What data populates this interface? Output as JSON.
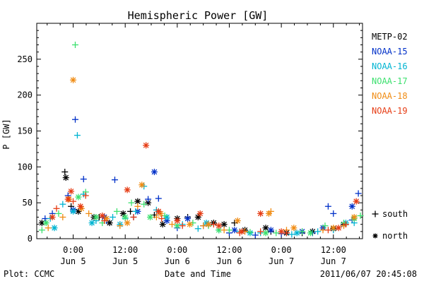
{
  "chart_data": {
    "type": "scatter",
    "title": "Hemispheric Power [GW]",
    "xlabel": "Date and Time",
    "ylabel": "P [GW]",
    "xlim": [
      -0.35,
      2.78
    ],
    "ylim": [
      0,
      300
    ],
    "grid": false,
    "legend_placement": "right",
    "y_ticks": [
      "0",
      "50",
      "100",
      "150",
      "200",
      "250"
    ],
    "x_ticks": [
      {
        "x": 0.0,
        "time": "0:00",
        "date": "Jun 5"
      },
      {
        "x": 0.5,
        "time": "12:00",
        "date": "Jun 5"
      },
      {
        "x": 1.0,
        "time": "0:00",
        "date": "Jun 6"
      },
      {
        "x": 1.5,
        "time": "12:00",
        "date": "Jun 6"
      },
      {
        "x": 2.0,
        "time": "0:00",
        "date": "Jun 7"
      },
      {
        "x": 2.5,
        "time": "12:00",
        "date": "Jun 7"
      }
    ],
    "marker_legend": [
      {
        "marker": "plus",
        "label": "south"
      },
      {
        "marker": "star",
        "label": "north"
      }
    ],
    "series": [
      {
        "name": "METP-02",
        "color": "#000000",
        "south": [
          [
            -0.08,
            93
          ],
          [
            -0.02,
            45
          ],
          [
            0.25,
            30
          ],
          [
            0.55,
            38
          ],
          [
            0.78,
            33
          ],
          [
            1.1,
            30
          ],
          [
            1.55,
            22
          ],
          [
            1.9,
            10
          ],
          [
            2.2,
            8
          ]
        ],
        "north": [
          [
            -0.3,
            22
          ],
          [
            -0.07,
            85
          ],
          [
            0.05,
            38
          ],
          [
            0.2,
            30
          ],
          [
            0.35,
            22
          ],
          [
            0.48,
            35
          ],
          [
            0.62,
            52
          ],
          [
            0.72,
            50
          ],
          [
            0.86,
            20
          ],
          [
            1.0,
            28
          ],
          [
            1.2,
            30
          ],
          [
            1.35,
            22
          ],
          [
            1.45,
            20
          ],
          [
            1.65,
            12
          ],
          [
            1.85,
            15
          ],
          [
            2.05,
            8
          ],
          [
            2.3,
            10
          ],
          [
            2.5,
            14
          ],
          [
            2.6,
            20
          ]
        ]
      },
      {
        "name": "NOAA-15",
        "color": "#0030c8",
        "south": [
          [
            -0.27,
            28
          ],
          [
            -0.2,
            35
          ],
          [
            -0.05,
            60
          ],
          [
            0.02,
            166
          ],
          [
            0.1,
            83
          ],
          [
            0.32,
            25
          ],
          [
            0.4,
            82
          ],
          [
            0.58,
            30
          ],
          [
            0.72,
            55
          ],
          [
            0.82,
            56
          ],
          [
            1.0,
            15
          ],
          [
            1.25,
            18
          ],
          [
            1.5,
            8
          ],
          [
            1.75,
            5
          ],
          [
            2.0,
            7
          ],
          [
            2.3,
            8
          ],
          [
            2.45,
            45
          ],
          [
            2.5,
            35
          ],
          [
            2.68,
            26
          ],
          [
            2.74,
            63
          ]
        ],
        "north": [
          [
            0.0,
            40
          ],
          [
            0.3,
            30
          ],
          [
            0.62,
            38
          ],
          [
            0.78,
            93
          ],
          [
            0.9,
            25
          ],
          [
            1.1,
            28
          ],
          [
            1.3,
            20
          ],
          [
            1.55,
            12
          ],
          [
            1.9,
            12
          ],
          [
            2.2,
            10
          ],
          [
            2.4,
            15
          ],
          [
            2.68,
            45
          ]
        ]
      },
      {
        "name": "NOAA-16",
        "color": "#00b4d2",
        "south": [
          [
            -0.22,
            28
          ],
          [
            -0.1,
            48
          ],
          [
            0.04,
            144
          ],
          [
            0.1,
            62
          ],
          [
            0.22,
            25
          ],
          [
            0.38,
            30
          ],
          [
            0.5,
            28
          ],
          [
            0.6,
            38
          ],
          [
            0.68,
            73
          ],
          [
            0.8,
            40
          ],
          [
            1.05,
            20
          ],
          [
            1.2,
            14
          ],
          [
            1.4,
            12
          ],
          [
            1.6,
            10
          ],
          [
            1.8,
            8
          ],
          [
            2.1,
            6
          ],
          [
            2.35,
            10
          ],
          [
            2.5,
            12
          ],
          [
            2.7,
            22
          ]
        ],
        "north": [
          [
            -0.18,
            15
          ],
          [
            0.0,
            38
          ],
          [
            0.18,
            22
          ],
          [
            0.45,
            20
          ],
          [
            0.9,
            30
          ],
          [
            1.28,
            22
          ],
          [
            1.7,
            8
          ],
          [
            2.15,
            8
          ],
          [
            2.62,
            22
          ]
        ]
      },
      {
        "name": "NOAA-17",
        "color": "#3ce06e",
        "south": [
          [
            -0.3,
            12
          ],
          [
            -0.14,
            35
          ],
          [
            0.02,
            270
          ],
          [
            0.12,
            65
          ],
          [
            0.28,
            22
          ],
          [
            0.42,
            38
          ],
          [
            0.56,
            50
          ],
          [
            0.68,
            48
          ],
          [
            0.88,
            32
          ],
          [
            1.15,
            22
          ],
          [
            1.3,
            18
          ],
          [
            1.5,
            12
          ],
          [
            1.7,
            9
          ],
          [
            1.95,
            8
          ],
          [
            2.2,
            10
          ],
          [
            2.42,
            18
          ],
          [
            2.6,
            22
          ],
          [
            2.76,
            32
          ]
        ],
        "north": [
          [
            -0.26,
            22
          ],
          [
            0.05,
            58
          ],
          [
            0.22,
            30
          ],
          [
            0.5,
            30
          ],
          [
            0.74,
            30
          ],
          [
            1.0,
            18
          ],
          [
            1.4,
            12
          ],
          [
            1.85,
            8
          ],
          [
            2.28,
            8
          ],
          [
            2.7,
            28
          ]
        ]
      },
      {
        "name": "NOAA-18",
        "color": "#f08c14",
        "south": [
          [
            -0.24,
            15
          ],
          [
            -0.1,
            30
          ],
          [
            0.15,
            35
          ],
          [
            0.45,
            18
          ],
          [
            0.62,
            45
          ],
          [
            0.8,
            30
          ],
          [
            0.95,
            20
          ],
          [
            1.25,
            18
          ],
          [
            1.45,
            12
          ],
          [
            1.65,
            10
          ],
          [
            1.9,
            38
          ],
          [
            2.05,
            12
          ],
          [
            2.4,
            12
          ],
          [
            2.6,
            18
          ]
        ],
        "north": [
          [
            -0.04,
            55
          ],
          [
            0.0,
            221
          ],
          [
            0.08,
            42
          ],
          [
            0.32,
            28
          ],
          [
            0.52,
            22
          ],
          [
            0.66,
            75
          ],
          [
            0.84,
            35
          ],
          [
            1.12,
            20
          ],
          [
            1.3,
            20
          ],
          [
            1.58,
            25
          ],
          [
            1.88,
            35
          ],
          [
            2.12,
            15
          ],
          [
            2.5,
            15
          ],
          [
            2.7,
            30
          ]
        ]
      },
      {
        "name": "NOAA-19",
        "color": "#e63c14",
        "south": [
          [
            -0.16,
            42
          ],
          [
            0.0,
            52
          ],
          [
            0.12,
            60
          ],
          [
            0.3,
            25
          ],
          [
            0.58,
            30
          ],
          [
            0.85,
            28
          ],
          [
            1.05,
            18
          ],
          [
            1.35,
            20
          ],
          [
            1.6,
            8
          ],
          [
            1.8,
            10
          ],
          [
            2.05,
            8
          ],
          [
            2.45,
            12
          ],
          [
            2.62,
            20
          ]
        ],
        "north": [
          [
            -0.2,
            30
          ],
          [
            -0.05,
            55
          ],
          [
            -0.02,
            66
          ],
          [
            0.07,
            45
          ],
          [
            0.28,
            32
          ],
          [
            0.52,
            68
          ],
          [
            0.7,
            130
          ],
          [
            0.82,
            38
          ],
          [
            1.0,
            25
          ],
          [
            1.22,
            35
          ],
          [
            1.4,
            18
          ],
          [
            1.62,
            10
          ],
          [
            1.8,
            35
          ],
          [
            2.0,
            10
          ],
          [
            2.55,
            15
          ],
          [
            2.72,
            52
          ]
        ]
      }
    ]
  },
  "footer": {
    "left": "Plot: CCMC",
    "right": "2011/06/07 20:45:08"
  }
}
